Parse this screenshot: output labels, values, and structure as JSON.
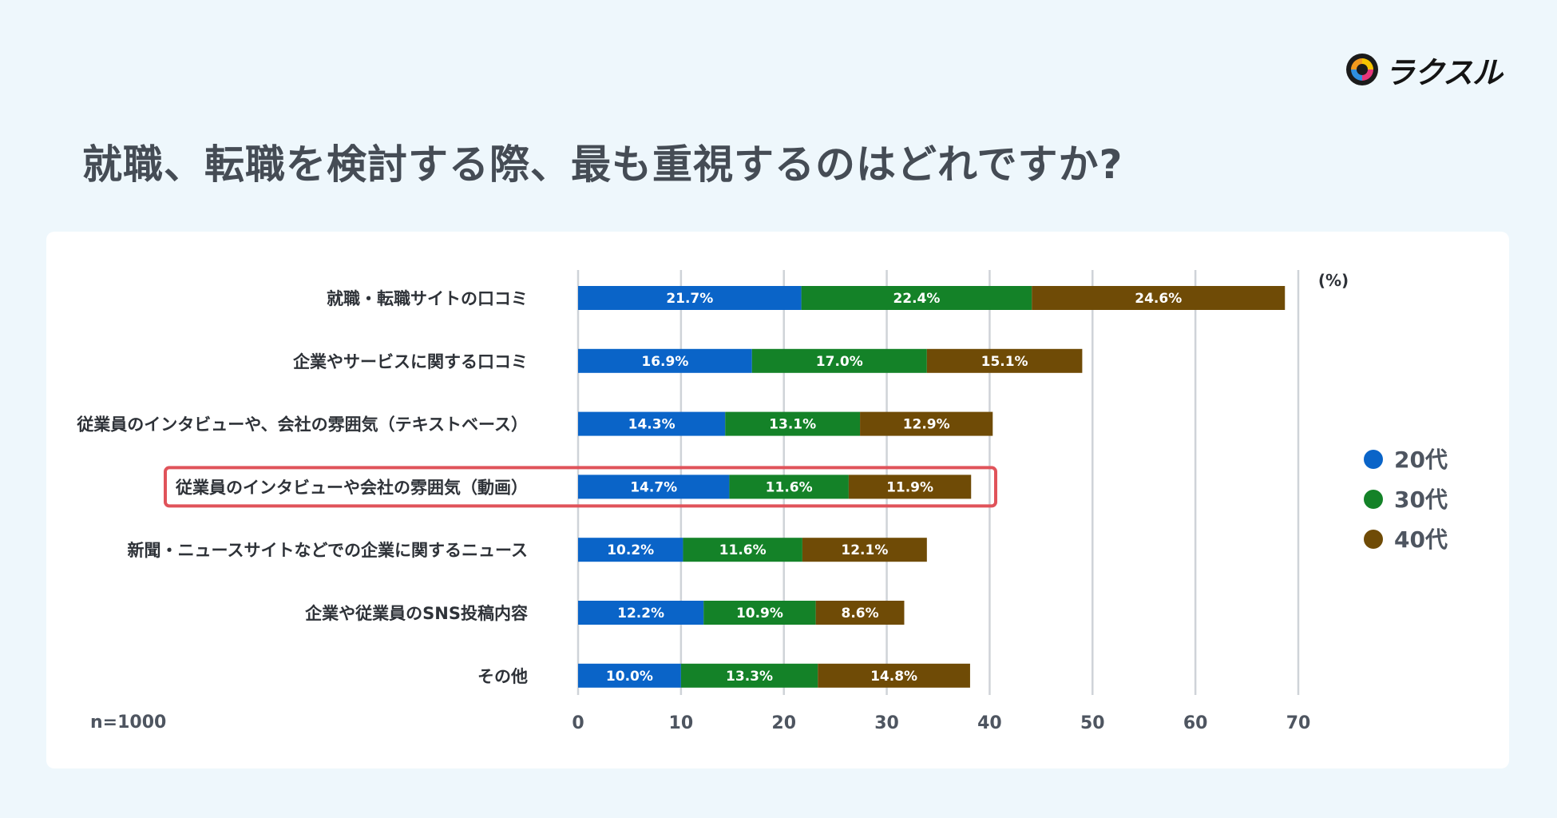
{
  "title": "就職、転職を検討する際、最も重視するのはどれですか?",
  "logo": {
    "text": "ラクスル"
  },
  "sample_note": "n=1000",
  "chart_data": {
    "type": "bar",
    "orientation": "horizontal",
    "stacked": true,
    "title": "就職、転職を検討する際、最も重視するのはどれですか?",
    "unit": "(%)",
    "categories": [
      "就職・転職サイトの口コミ",
      "企業やサービスに関する口コミ",
      "従業員のインタビューや、会社の雰囲気（テキストベース）",
      "従業員のインタビューや会社の雰囲気（動画）",
      "新聞・ニュースサイトなどでの企業に関するニュース",
      "企業や従業員のSNS投稿内容",
      "その他"
    ],
    "series": [
      {
        "name": "20代",
        "color": "#0a64c8",
        "values": [
          21.7,
          16.9,
          14.3,
          14.7,
          10.2,
          12.2,
          10.0
        ]
      },
      {
        "name": "30代",
        "color": "#148228",
        "values": [
          22.4,
          17.0,
          13.1,
          11.6,
          11.6,
          10.9,
          13.3
        ]
      },
      {
        "name": "40代",
        "color": "#6f4b06",
        "values": [
          24.6,
          15.1,
          12.9,
          11.9,
          12.1,
          8.6,
          14.8
        ]
      }
    ],
    "value_labels": [
      [
        "21.7%",
        "22.4%",
        "24.6%"
      ],
      [
        "16.9%",
        "17.0%",
        "15.1%"
      ],
      [
        "14.3%",
        "13.1%",
        "12.9%"
      ],
      [
        "14.7%",
        "11.6%",
        "11.9%"
      ],
      [
        "10.2%",
        "11.6%",
        "12.1%"
      ],
      [
        "12.2%",
        "10.9%",
        "8.6%"
      ],
      [
        "10.0%",
        "13.3%",
        "14.8%"
      ]
    ],
    "xlim": [
      0,
      70
    ],
    "xticks": [
      0,
      10,
      20,
      30,
      40,
      50,
      60,
      70
    ],
    "grid": true,
    "legend_position": "right",
    "highlight_category_index": 3,
    "highlight_color": "#e0535a"
  }
}
